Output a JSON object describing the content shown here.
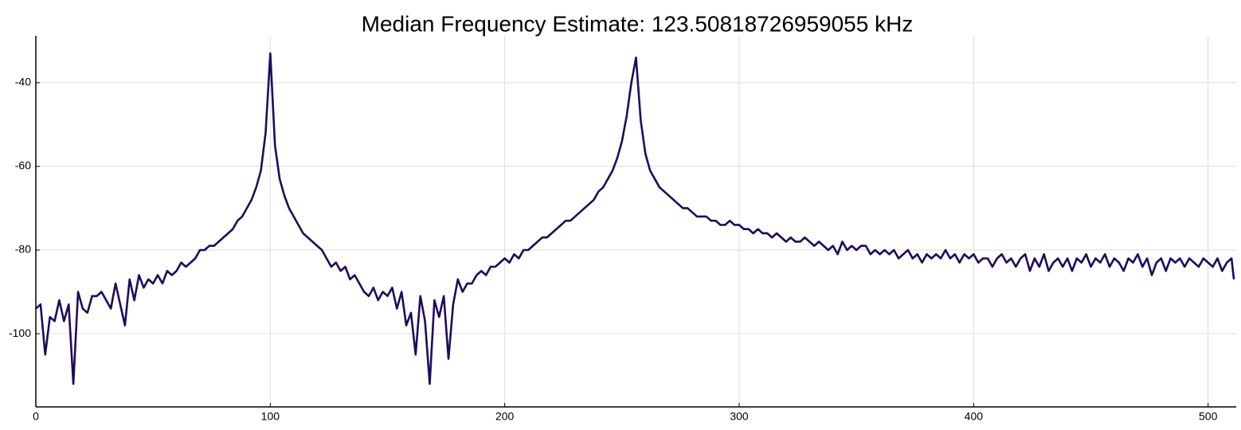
{
  "chart_data": {
    "type": "line",
    "title": "Median Frequency Estimate: 123.50818726959055 kHz",
    "x": [
      0,
      2,
      4,
      6,
      8,
      10,
      12,
      14,
      16,
      18,
      20,
      22,
      24,
      26,
      28,
      30,
      32,
      34,
      36,
      38,
      40,
      42,
      44,
      46,
      48,
      50,
      52,
      54,
      56,
      58,
      60,
      62,
      64,
      66,
      68,
      70,
      72,
      74,
      76,
      78,
      80,
      82,
      84,
      86,
      88,
      90,
      92,
      94,
      96,
      98,
      100,
      102,
      104,
      106,
      108,
      110,
      112,
      114,
      116,
      118,
      120,
      122,
      124,
      126,
      128,
      130,
      132,
      134,
      136,
      138,
      140,
      142,
      144,
      146,
      148,
      150,
      152,
      154,
      156,
      158,
      160,
      162,
      164,
      166,
      168,
      170,
      172,
      174,
      176,
      178,
      180,
      182,
      184,
      186,
      188,
      190,
      192,
      194,
      196,
      198,
      200,
      202,
      204,
      206,
      208,
      210,
      212,
      214,
      216,
      218,
      220,
      222,
      224,
      226,
      228,
      230,
      232,
      234,
      236,
      238,
      240,
      242,
      244,
      246,
      248,
      250,
      252,
      254,
      256,
      258,
      260,
      262,
      264,
      266,
      268,
      270,
      272,
      274,
      276,
      278,
      280,
      282,
      284,
      286,
      288,
      290,
      292,
      294,
      296,
      298,
      300,
      302,
      304,
      306,
      308,
      310,
      312,
      314,
      316,
      318,
      320,
      322,
      324,
      326,
      328,
      330,
      332,
      334,
      336,
      338,
      340,
      342,
      344,
      346,
      348,
      350,
      352,
      354,
      356,
      358,
      360,
      362,
      364,
      366,
      368,
      370,
      372,
      374,
      376,
      378,
      380,
      382,
      384,
      386,
      388,
      390,
      392,
      394,
      396,
      398,
      400,
      402,
      404,
      406,
      408,
      410,
      412,
      414,
      416,
      418,
      420,
      422,
      424,
      426,
      428,
      430,
      432,
      434,
      436,
      438,
      440,
      442,
      444,
      446,
      448,
      450,
      452,
      454,
      456,
      458,
      460,
      462,
      464,
      466,
      468,
      470,
      472,
      474,
      476,
      478,
      480,
      482,
      484,
      486,
      488,
      490,
      492,
      494,
      496,
      498,
      500,
      502,
      504,
      506,
      508,
      510,
      511
    ],
    "values": [
      -94,
      -93,
      -105,
      -96,
      -97,
      -92,
      -97,
      -93,
      -112,
      -90,
      -94,
      -95,
      -91,
      -91,
      -90,
      -92,
      -94,
      -88,
      -93,
      -98,
      -87,
      -92,
      -86,
      -89,
      -87,
      -88,
      -86,
      -88,
      -85,
      -86,
      -85,
      -83,
      -84,
      -83,
      -82,
      -80,
      -80,
      -79,
      -79,
      -78,
      -77,
      -76,
      -75,
      -73,
      -72,
      -70,
      -68,
      -65,
      -61,
      -52,
      -33,
      -55,
      -63,
      -67,
      -70,
      -72,
      -74,
      -76,
      -77,
      -78,
      -79,
      -80,
      -82,
      -84,
      -83,
      -85,
      -84,
      -87,
      -86,
      -88,
      -90,
      -91,
      -89,
      -92,
      -90,
      -91,
      -89,
      -94,
      -90,
      -98,
      -95,
      -105,
      -91,
      -97,
      -112,
      -92,
      -96,
      -91,
      -106,
      -93,
      -87,
      -90,
      -88,
      -88,
      -86,
      -85,
      -86,
      -84,
      -84,
      -83,
      -82,
      -83,
      -81,
      -82,
      -80,
      -80,
      -79,
      -78,
      -77,
      -77,
      -76,
      -75,
      -74,
      -73,
      -73,
      -72,
      -71,
      -70,
      -69,
      -68,
      -66,
      -65,
      -63,
      -61,
      -58,
      -54,
      -48,
      -40,
      -34,
      -49,
      -57,
      -61,
      -63,
      -65,
      -66,
      -67,
      -68,
      -69,
      -70,
      -70,
      -71,
      -72,
      -72,
      -72,
      -73,
      -73,
      -74,
      -74,
      -73,
      -74,
      -74,
      -75,
      -75,
      -76,
      -75,
      -76,
      -76,
      -77,
      -76,
      -77,
      -78,
      -77,
      -78,
      -78,
      -77,
      -78,
      -79,
      -78,
      -79,
      -80,
      -79,
      -81,
      -78,
      -80,
      -79,
      -80,
      -79,
      -79,
      -81,
      -80,
      -81,
      -80,
      -81,
      -80,
      -82,
      -81,
      -80,
      -82,
      -81,
      -83,
      -81,
      -82,
      -81,
      -82,
      -80,
      -82,
      -81,
      -83,
      -81,
      -82,
      -81,
      -83,
      -82,
      -82,
      -84,
      -82,
      -81,
      -83,
      -82,
      -84,
      -82,
      -81,
      -85,
      -82,
      -84,
      -81,
      -85,
      -83,
      -82,
      -84,
      -82,
      -85,
      -82,
      -83,
      -81,
      -84,
      -82,
      -83,
      -81,
      -84,
      -82,
      -83,
      -85,
      -82,
      -83,
      -81,
      -84,
      -82,
      -86,
      -83,
      -82,
      -85,
      -82,
      -83,
      -82,
      -84,
      -82,
      -83,
      -84,
      -82,
      -83,
      -84,
      -82,
      -85,
      -83,
      -82,
      -87
    ],
    "color": "#1f0a5e",
    "xlim": [
      0,
      512
    ],
    "xticks": [
      0,
      100,
      200,
      300,
      400,
      500
    ],
    "ylim": [
      -117.5,
      -28.8
    ],
    "yticks": [
      -40,
      -60,
      -80,
      -100
    ],
    "grid": true
  }
}
